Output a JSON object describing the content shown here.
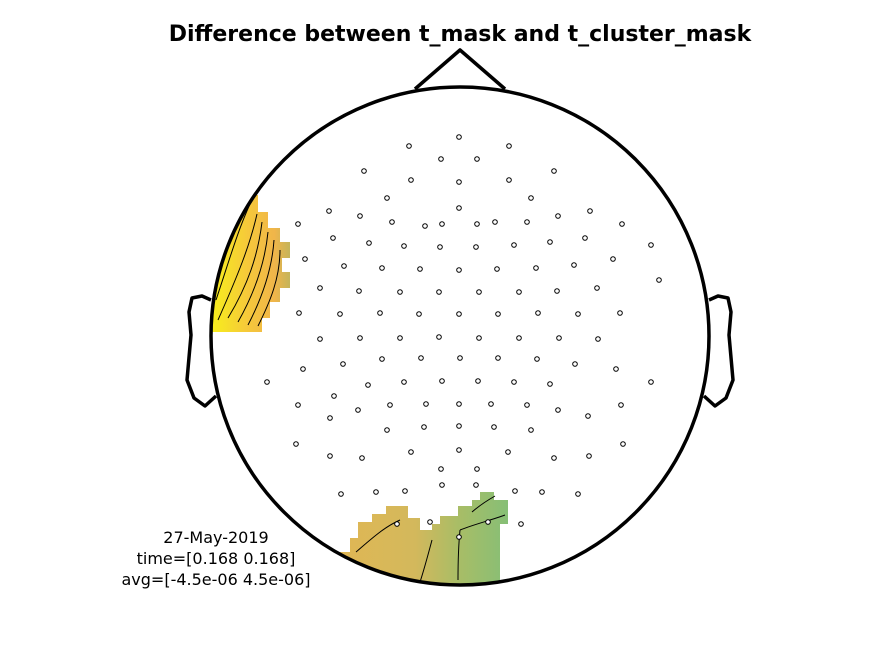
{
  "figure": {
    "title": "Difference between t_mask and t_cluster_mask",
    "info_lines": [
      "27-May-2019",
      "time=[0.168 0.168]",
      "avg=[-4.5e-06 4.5e-06]"
    ]
  },
  "colors": {
    "outline": "#000000",
    "yellow": "#f7ee1c",
    "orange": "#f4bb42",
    "tan": "#d8b858",
    "green": "#8cbf74",
    "background": "#ffffff"
  },
  "regions": {
    "left_cluster_colors": [
      "yellow",
      "orange"
    ],
    "bottom_cluster_colors": [
      "tan",
      "green"
    ]
  },
  "electrode_icon": "small-open-circle-icon"
}
